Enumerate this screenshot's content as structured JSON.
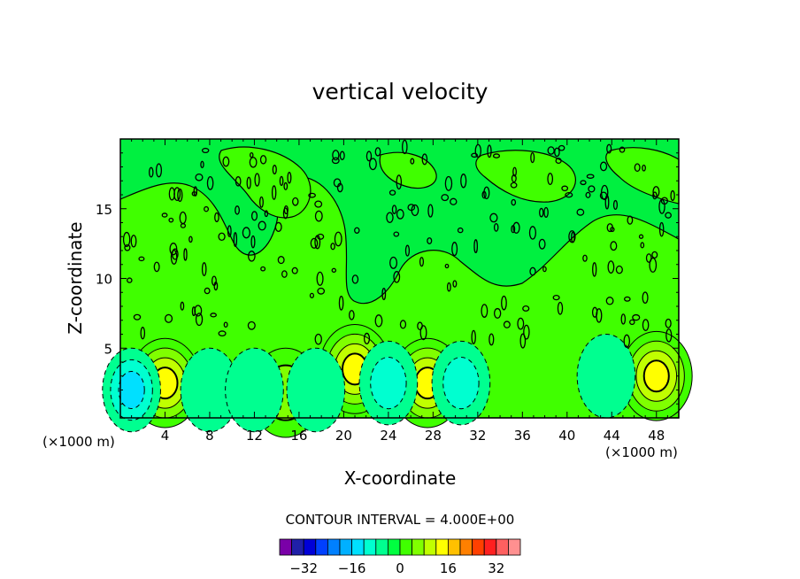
{
  "chart_data": {
    "type": "heatmap",
    "title": "vertical velocity",
    "xlabel": "X-coordinate",
    "ylabel": "Z-coordinate",
    "x_unit_left": "(×1000 m)",
    "x_unit_right": "(×1000 m)",
    "xlim": [
      0,
      50
    ],
    "ylim": [
      0,
      20
    ],
    "xticks": [
      4,
      8,
      12,
      16,
      20,
      24,
      28,
      32,
      36,
      40,
      44,
      48
    ],
    "xtick_labels": [
      "4",
      "8",
      "12",
      "16",
      "20",
      "24",
      "28",
      "32",
      "36",
      "40",
      "44",
      "48"
    ],
    "yticks": [
      5,
      10,
      15
    ],
    "ytick_labels": [
      "5",
      "10",
      "15"
    ],
    "contour_interval_label": "CONTOUR INTERVAL = 4.000E+00",
    "contour_interval": 4,
    "colorbar": {
      "colors": [
        "#7a00a8",
        "#2020a8",
        "#0000d8",
        "#0040ff",
        "#0080ff",
        "#00b0ff",
        "#00e0ff",
        "#00ffd0",
        "#00ff90",
        "#00ff40",
        "#40ff00",
        "#80ff00",
        "#c0ff00",
        "#ffff00",
        "#ffc000",
        "#ff8000",
        "#ff4000",
        "#ff2020",
        "#ff6060",
        "#ff9090"
      ],
      "tick_values": [
        -32,
        -16,
        0,
        16,
        32
      ],
      "tick_labels": [
        "−32",
        "−16",
        "0",
        "16",
        "32"
      ]
    },
    "features": [
      {
        "kind": "updraft",
        "x": 4,
        "z": 2.5,
        "peak": 16
      },
      {
        "kind": "updraft",
        "x": 14.8,
        "z": 1.8,
        "peak": 8
      },
      {
        "kind": "updraft",
        "x": 21,
        "z": 3.5,
        "peak": 16
      },
      {
        "kind": "updraft",
        "x": 27.5,
        "z": 2.5,
        "peak": 16
      },
      {
        "kind": "updraft",
        "x": 48,
        "z": 3,
        "peak": 16
      },
      {
        "kind": "downdraft",
        "x": 1,
        "z": 2,
        "peak": -12
      },
      {
        "kind": "downdraft",
        "x": 8,
        "z": 2,
        "peak": -4
      },
      {
        "kind": "downdraft",
        "x": 12,
        "z": 2,
        "peak": -4
      },
      {
        "kind": "downdraft",
        "x": 17.5,
        "z": 2,
        "peak": -4
      },
      {
        "kind": "downdraft",
        "x": 24,
        "z": 2.5,
        "peak": -8
      },
      {
        "kind": "downdraft",
        "x": 30.5,
        "z": 2.5,
        "peak": -8
      },
      {
        "kind": "downdraft",
        "x": 43.5,
        "z": 3,
        "peak": -4
      }
    ]
  }
}
